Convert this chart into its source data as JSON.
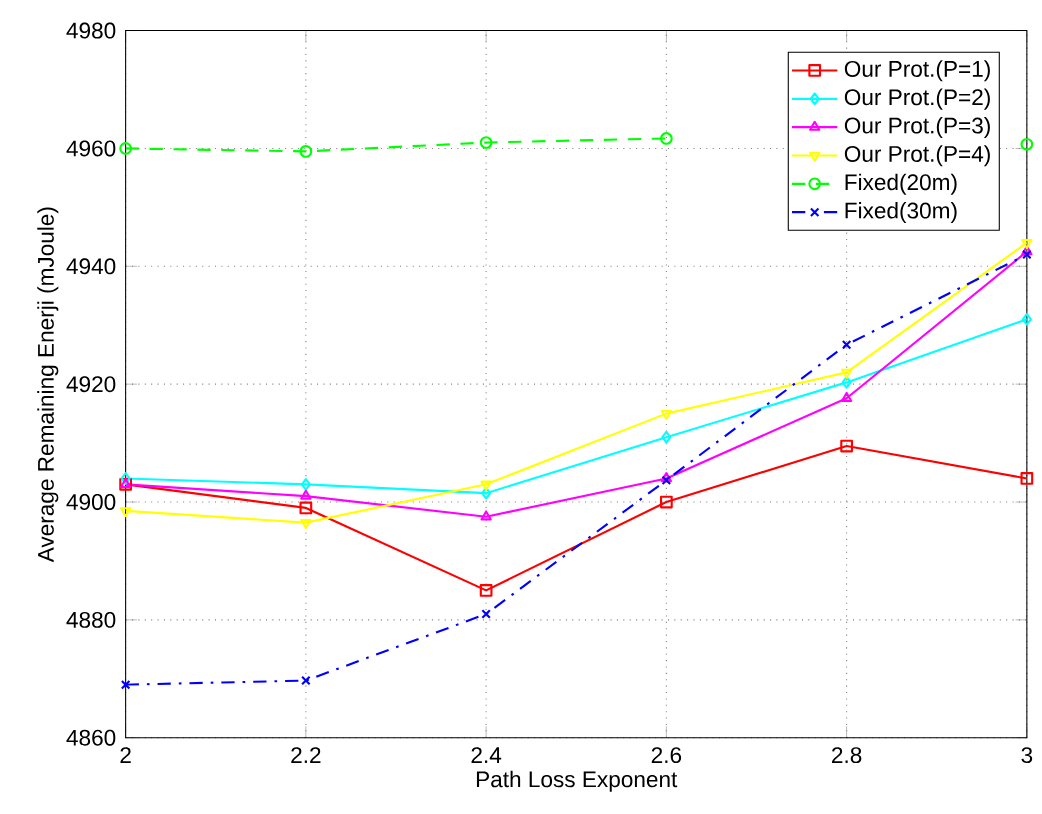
{
  "chart_data": {
    "type": "line",
    "xlabel": "Path Loss Exponent",
    "ylabel": "Average Remaining Enerji (mJoule)",
    "x": [
      2,
      2.2,
      2.4,
      2.6,
      2.8,
      3
    ],
    "series": [
      {
        "name": "Our Prot.(P=1)",
        "color": "#ff0000",
        "marker": "square",
        "line_style": "solid",
        "values": [
          4903,
          4899,
          4885,
          4900,
          4909.5,
          4904
        ]
      },
      {
        "name": "Our Prot.(P=2)",
        "color": "#00ffff",
        "marker": "diamond",
        "line_style": "solid",
        "values": [
          4904,
          4903,
          4901.5,
          4911,
          4920.3,
          4931
        ]
      },
      {
        "name": "Our Prot.(P=3)",
        "color": "#ff00ff",
        "marker": "triangle",
        "line_style": "solid",
        "values": [
          4903,
          4901,
          4897.5,
          4904,
          4917.6,
          4942.5
        ]
      },
      {
        "name": "Our Prot.(P=4)",
        "color": "#ffff00",
        "marker": "triangle-down",
        "line_style": "solid",
        "values": [
          4898.5,
          4896.5,
          4903,
          4915,
          4922,
          4944
        ]
      },
      {
        "name": "Fixed(20m)",
        "color": "#00ff00",
        "marker": "circle",
        "line_style": "dashed",
        "values": [
          4960,
          4959.5,
          4961,
          4961.7,
          null,
          4960.7
        ]
      },
      {
        "name": "Fixed(30m)",
        "color": "#0000ff",
        "marker": "cross",
        "line_style": "dashdot",
        "values": [
          4869,
          4869.7,
          4881,
          4903.7,
          4926.7,
          4942
        ]
      }
    ],
    "xlim": [
      2,
      3
    ],
    "ylim": [
      4860,
      4980
    ],
    "xticks": [
      2,
      2.2,
      2.4,
      2.6,
      2.8,
      3
    ],
    "yticks": [
      4860,
      4880,
      4900,
      4920,
      4940,
      4960,
      4980
    ],
    "grid": true,
    "legend": "top right"
  }
}
